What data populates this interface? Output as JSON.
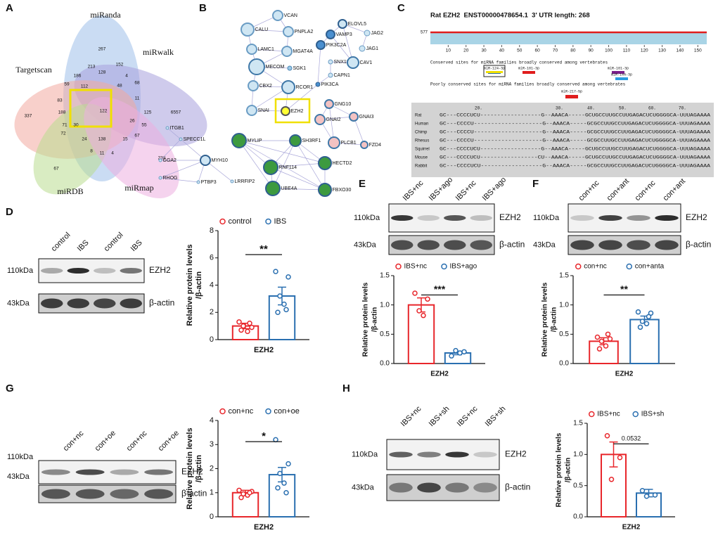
{
  "venn": {
    "label": "A",
    "sets": [
      "miRanda",
      "miRwalk",
      "Targetscan",
      "miRDB",
      "miRmap"
    ],
    "regions": [
      267,
      6557,
      337,
      67,
      239,
      213,
      152,
      186,
      128,
      4,
      68,
      59,
      112,
      48,
      11,
      83,
      188,
      122,
      125,
      71,
      30,
      26,
      55,
      72,
      24,
      138,
      15,
      67,
      8,
      11,
      4
    ]
  },
  "network": {
    "label": "B",
    "nodes": [
      "VCAN",
      "CALU",
      "PNPLA2",
      "LAMC1",
      "MGAT4A",
      "MECOM",
      "SGK1",
      "CBX2",
      "RCOR1",
      "SNAI",
      "EZH2",
      "PIK3CA",
      "CAPN1",
      "SNX18",
      "PIK3C2A",
      "VAMP3",
      "ELOVL5",
      "JAG2",
      "JAG1",
      "CAV1",
      "GNG10",
      "GNAI2",
      "GNAI3",
      "PLCB1",
      "FZD4",
      "ITGB1",
      "SPECC1L",
      "GGA2",
      "MYH10",
      "RHOG",
      "PTBP3",
      "LRRFIP2",
      "MYLIP",
      "SH3RF1",
      "RNF114",
      "HECTD2",
      "UBE4A",
      "FBXO30"
    ]
  },
  "utr": {
    "label": "C",
    "title": "Rat EZH2  ENST00000478654.1  3' UTR length: 268",
    "depth": 577,
    "ticks": [
      10,
      20,
      30,
      40,
      50,
      60,
      70,
      80,
      90,
      100,
      110,
      120,
      130,
      140,
      150
    ],
    "conserved_title": "Conserved sites for miRNA families broadly conserved among vertebrates",
    "conserved_sites": [
      "miR-124-3p",
      "miR-101-3p",
      "miR-101-3p",
      "miR-144-3p"
    ],
    "poorly_title": "Poorly conserved sites for miRNA families broadly conserved among vertebrates",
    "poorly_sites": [
      "miR-217-5p"
    ],
    "alignment_positions": [
      "20.",
      "30.",
      "40.",
      "50.",
      "60.",
      "70."
    ],
    "species": [
      "Rat",
      "Human",
      "Chimp",
      "Rhesus",
      "Squirrel",
      "Mouse",
      "Rabbit"
    ],
    "sequences": [
      "GC---CCCCUCU------------------G--AAACA-----GCUGCCUUGCCUUGAGACUCUGGGGCA-UUUAGAAAA",
      "GC---CCCCU--------------------G--AAACA-----GCGCCUUGCCUUGAGACUCUGGGGCA-UUUAGAAAA",
      "GC---CCCCU--------------------G--AAACA-----GCGCCUUGCCUUGAGACUCUGGGGCA-UUUAGAAAA",
      "GC---CCCCU--------------------G--AAACA-----GCGCCUUGCCUUGAGACUCUGGGGCA-UUUAGAAAA",
      "GC---CCCCUCU------------------G--AAACA-----GCUGCCUUGCCUUGAGACUCUGGGGCA-UUUAGAAAA",
      "GC---CCCCUCU-----------------CU--AAACA-----GCUGCCUUGCCUUGAGACUCUGGGGCA-UUUAGAAAA",
      "GC---CCCCUCU------------------G--AAACA-----GCGCCUUGCCUUGAGACUCUGGGGCA-UUUAGAAAA"
    ]
  },
  "blots": [
    {
      "label": "D",
      "lanes": [
        "control",
        "IBS",
        "control",
        "IBS"
      ],
      "markers": [
        "110kDa",
        "43kDa"
      ],
      "proteins": [
        "EZH2",
        "β-actin"
      ]
    },
    {
      "label": "E",
      "lanes": [
        "IBS+nc",
        "IBS+ago",
        "IBS+nc",
        "IBS+ago"
      ],
      "markers": [
        "110kDa",
        "43kDa"
      ],
      "proteins": [
        "EZH2",
        "β-actin"
      ]
    },
    {
      "label": "F",
      "lanes": [
        "con+nc",
        "con+ant",
        "con+nc",
        "con+ant"
      ],
      "markers": [
        "110kDa",
        "43kDa"
      ],
      "proteins": [
        "EZH2",
        "β-actin"
      ]
    },
    {
      "label": "G",
      "lanes": [
        "con+nc",
        "con+oe",
        "con+nc",
        "con+oe"
      ],
      "markers": [
        "110kDa",
        "43kDa"
      ],
      "proteins": [
        "EZH2",
        "β-actin"
      ]
    },
    {
      "label": "H",
      "lanes": [
        "IBS+nc",
        "IBS+sh",
        "IBS+nc",
        "IBS+sh"
      ],
      "markers": [
        "110kDa",
        "43kDa"
      ],
      "proteins": [
        "EZH2",
        "β-actin"
      ]
    }
  ],
  "chart_data": [
    {
      "type": "bar",
      "categories": [
        "EZH2"
      ],
      "ylabel": [
        "Relative protein levels",
        "/β-actin"
      ],
      "ylim": [
        0,
        8
      ],
      "yticks": [
        0,
        2,
        4,
        6,
        8
      ],
      "significance": "**",
      "series": [
        {
          "name": "control",
          "color": "#e8262b",
          "values": [
            1.0
          ],
          "errors": [
            0.2
          ],
          "points": [
            [
              1.3,
              0.9,
              1.0,
              0.6,
              0.7,
              1.2
            ]
          ]
        },
        {
          "name": "IBS",
          "color": "#2a6fb0",
          "values": [
            3.2
          ],
          "errors": [
            0.65
          ],
          "points": [
            [
              5.0,
              4.6,
              3.2,
              2.6,
              2.0,
              2.2
            ]
          ]
        }
      ]
    },
    {
      "type": "bar",
      "categories": [
        "EZH2"
      ],
      "ylabel": [
        "Relative protein levels",
        "/β-actin"
      ],
      "ylim": [
        0,
        1.5
      ],
      "yticks": [
        {
          "value": 0,
          "label": "0.0"
        },
        0.5,
        {
          "value": 1,
          "label": "1.0"
        },
        1.5
      ],
      "significance": "***",
      "series": [
        {
          "name": "IBS+nc",
          "color": "#e8262b",
          "values": [
            1.0
          ],
          "errors": [
            0.12
          ],
          "points": [
            [
              1.2,
              1.1,
              0.9,
              0.82
            ]
          ]
        },
        {
          "name": "IBS+ago",
          "color": "#2a6fb0",
          "values": [
            0.18
          ],
          "errors": [
            0.03
          ],
          "points": [
            [
              0.13,
              0.2,
              0.22,
              0.18
            ]
          ]
        }
      ]
    },
    {
      "type": "bar",
      "categories": [
        "EZH2"
      ],
      "ylabel": [
        "Relative protein levels",
        "/β-actin"
      ],
      "ylim": [
        0,
        1.5
      ],
      "yticks": [
        {
          "value": 0,
          "label": "0.0"
        },
        0.5,
        {
          "value": 1,
          "label": "1.0"
        },
        1.5
      ],
      "significance": "**",
      "series": [
        {
          "name": "con+nc",
          "color": "#e8262b",
          "values": [
            0.38
          ],
          "errors": [
            0.06
          ],
          "points": [
            [
              0.45,
              0.42,
              0.38,
              0.3,
              0.25,
              0.5
            ]
          ]
        },
        {
          "name": "con+anta",
          "color": "#2a6fb0",
          "values": [
            0.75
          ],
          "errors": [
            0.06
          ],
          "points": [
            [
              0.88,
              0.86,
              0.72,
              0.68,
              0.62,
              0.8
            ]
          ]
        }
      ]
    },
    {
      "type": "bar",
      "categories": [
        "EZH2"
      ],
      "ylabel": [
        "Relative protein levels",
        "/β-actin"
      ],
      "ylim": [
        0,
        4
      ],
      "yticks": [
        0,
        1,
        2,
        3,
        4
      ],
      "significance": "*",
      "series": [
        {
          "name": "con+nc",
          "color": "#e8262b",
          "values": [
            1.0
          ],
          "errors": [
            0.1
          ],
          "points": [
            [
              1.1,
              1.05,
              0.95,
              0.9,
              0.8,
              1.0
            ]
          ]
        },
        {
          "name": "con+oe",
          "color": "#2a6fb0",
          "values": [
            1.75
          ],
          "errors": [
            0.3
          ],
          "points": [
            [
              3.2,
              2.2,
              1.8,
              1.4,
              1.2,
              1.0
            ]
          ]
        }
      ]
    },
    {
      "type": "bar",
      "categories": [
        "EZH2"
      ],
      "ylabel": [
        "Relative protein levels",
        "/β-actin"
      ],
      "ylim": [
        0,
        1.5
      ],
      "yticks": [
        {
          "value": 0,
          "label": "0.0"
        },
        0.5,
        {
          "value": 1,
          "label": "1.0"
        },
        1.5
      ],
      "significance": "0.0532",
      "series": [
        {
          "name": "IBS+nc",
          "color": "#e8262b",
          "values": [
            1.0
          ],
          "errors": [
            0.2
          ],
          "points": [
            [
              1.3,
              0.95,
              0.6
            ]
          ]
        },
        {
          "name": "IBS+sh",
          "color": "#2a6fb0",
          "values": [
            0.38
          ],
          "errors": [
            0.06
          ],
          "points": [
            [
              0.42,
              0.35,
              0.33
            ]
          ]
        }
      ]
    }
  ]
}
